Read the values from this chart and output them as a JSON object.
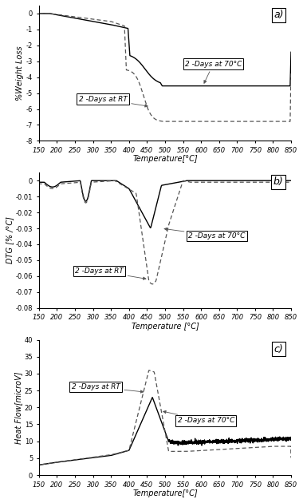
{
  "xlim": [
    150,
    850
  ],
  "xticks": [
    150,
    200,
    250,
    300,
    350,
    400,
    450,
    500,
    550,
    600,
    650,
    700,
    750,
    800,
    850
  ],
  "panel_a": {
    "ylabel": "%Weight Loss",
    "ylim": [
      -8,
      0.5
    ],
    "yticks": [
      0,
      -1,
      -2,
      -3,
      -4,
      -5,
      -6,
      -7,
      -8
    ],
    "label": "a)"
  },
  "panel_b": {
    "ylabel": "DTG [% /°C]",
    "ylim": [
      -0.08,
      0.005
    ],
    "yticks": [
      0,
      -0.01,
      -0.02,
      -0.03,
      -0.04,
      -0.05,
      -0.06,
      -0.07,
      -0.08
    ],
    "label": "b)"
  },
  "panel_c": {
    "ylabel": "Heat Flow[microV]",
    "ylim": [
      0,
      40
    ],
    "yticks": [
      0,
      5,
      10,
      15,
      20,
      25,
      30,
      35,
      40
    ],
    "label": "c)"
  },
  "line_color_solid": "#000000",
  "line_color_dashed": "#555555",
  "bg_color": "#ffffff",
  "font_size_label": 7,
  "font_size_tick": 6,
  "font_size_annot": 6.5
}
